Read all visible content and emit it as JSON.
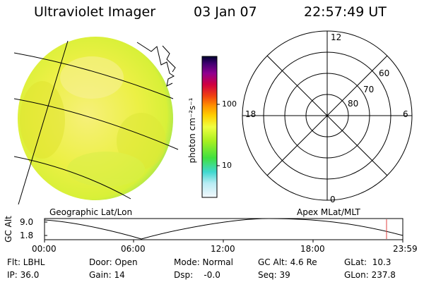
{
  "header": {
    "title": "Ultraviolet Imager",
    "date": "03 Jan 07",
    "time": "22:57:49 UT"
  },
  "colorbar": {
    "unit_label": "photon cm⁻²s⁻¹",
    "ticks": [
      "100",
      "10"
    ],
    "colors": [
      "#000040",
      "#3a0066",
      "#7a0090",
      "#b0006a",
      "#d40020",
      "#f04000",
      "#ff8c00",
      "#ffc000",
      "#ffff40",
      "#e0ff40",
      "#a0f020",
      "#40e040",
      "#20e0c0",
      "#60e0f0",
      "#b0f0f8",
      "#f0f8ff"
    ]
  },
  "polar_plot": {
    "mlt_labels": {
      "top": "12",
      "left": "18",
      "right": "6",
      "bottom": "0"
    },
    "lat_labels": [
      "60",
      "70",
      "80"
    ]
  },
  "coord_labels": {
    "left": "Geographic Lat/Lon",
    "right": "Apex MLat/MLT"
  },
  "orbit_plot": {
    "ylabel": "GC Alt",
    "y_ticks": [
      "9.0",
      "1.8"
    ],
    "x_ticks": [
      "00:00",
      "06:00",
      "12:00",
      "18:00",
      "23:59"
    ],
    "marker_hour": 22.96
  },
  "info": {
    "flt": "Flt: LBHL",
    "ip": "IP: 36.0",
    "door": "Door: Open",
    "gain": "Gain: 14",
    "mode": "Mode: Normal",
    "dsp": "Dsp:    -0.0",
    "gc_alt": "GC Alt: 4.6 Re",
    "seq": "Seq: 39",
    "glat": "GLat:  10.3",
    "glon": "GLon: 237.8"
  },
  "colors": {
    "disk_base": "#e8f040",
    "disk_edge": "#7ce060",
    "disk_bright": "#f8f08c",
    "marker": "#e04040"
  }
}
